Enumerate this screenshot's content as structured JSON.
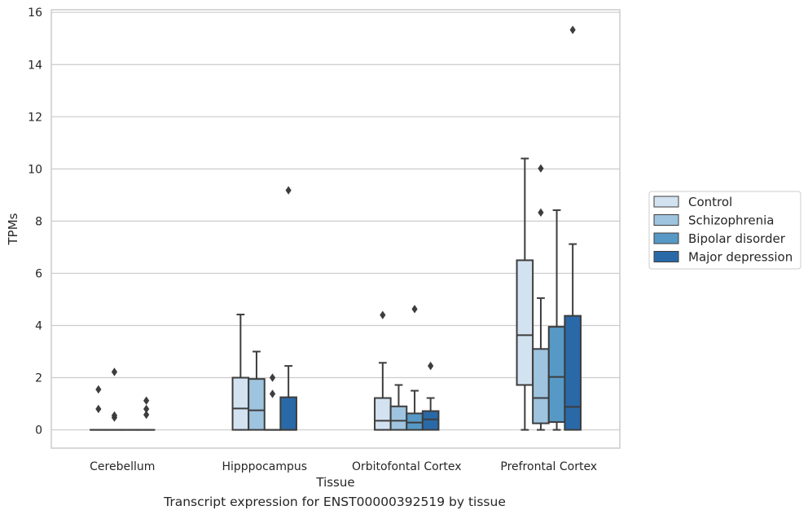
{
  "chart_data": {
    "type": "box",
    "xlabel": "Tissue",
    "ylabel": "TPMs",
    "caption": "Transcript expression for ENST00000392519 by tissue",
    "categories": [
      "Cerebellum",
      "Hipppocampus",
      "Orbitofontal Cortex",
      "Prefrontal Cortex"
    ],
    "ylim": [
      -0.7,
      16.1
    ],
    "yticks": [
      0,
      2,
      4,
      6,
      8,
      10,
      12,
      14,
      16
    ],
    "grid": true,
    "legend_position": "center-right",
    "series": [
      {
        "name": "Control",
        "color": "#d3e2f0",
        "boxes": [
          {
            "min": 0,
            "q1": 0,
            "median": 0,
            "q3": 0,
            "max": 0,
            "outliers": [
              0.8,
              1.55
            ]
          },
          {
            "min": 0,
            "q1": 0,
            "median": 0.82,
            "q3": 2.0,
            "max": 4.42,
            "outliers": []
          },
          {
            "min": 0,
            "q1": 0,
            "median": 0.35,
            "q3": 1.22,
            "max": 2.57,
            "outliers": [
              4.4
            ]
          },
          {
            "min": 0,
            "q1": 1.72,
            "median": 3.63,
            "q3": 6.5,
            "max": 10.4,
            "outliers": []
          }
        ]
      },
      {
        "name": "Schizophrenia",
        "color": "#9ec4df",
        "boxes": [
          {
            "min": 0,
            "q1": 0,
            "median": 0,
            "q3": 0,
            "max": 0,
            "outliers": [
              0.47,
              0.55,
              2.22
            ]
          },
          {
            "min": 0,
            "q1": 0,
            "median": 0.75,
            "q3": 1.95,
            "max": 3.0,
            "outliers": []
          },
          {
            "min": 0,
            "q1": 0,
            "median": 0.35,
            "q3": 0.9,
            "max": 1.72,
            "outliers": []
          },
          {
            "min": 0,
            "q1": 0.25,
            "median": 1.22,
            "q3": 3.1,
            "max": 5.05,
            "outliers": [
              8.33,
              10.02
            ]
          }
        ]
      },
      {
        "name": "Bipolar disorder",
        "color": "#5799c6",
        "boxes": [
          {
            "min": 0,
            "q1": 0,
            "median": 0,
            "q3": 0,
            "max": 0,
            "outliers": []
          },
          {
            "min": 0,
            "q1": 0,
            "median": 0,
            "q3": 0,
            "max": 0,
            "outliers": [
              1.38,
              2.0
            ]
          },
          {
            "min": 0,
            "q1": 0,
            "median": 0.28,
            "q3": 0.63,
            "max": 1.5,
            "outliers": [
              4.63
            ]
          },
          {
            "min": 0,
            "q1": 0.3,
            "median": 2.03,
            "q3": 3.95,
            "max": 8.42,
            "outliers": []
          }
        ]
      },
      {
        "name": "Major depression",
        "color": "#2a69a7",
        "boxes": [
          {
            "min": 0,
            "q1": 0,
            "median": 0,
            "q3": 0,
            "max": 0,
            "outliers": [
              0.58,
              0.8,
              1.12
            ]
          },
          {
            "min": 0,
            "q1": 0,
            "median": 0,
            "q3": 1.25,
            "max": 2.45,
            "outliers": [
              9.18
            ]
          },
          {
            "min": 0,
            "q1": 0,
            "median": 0.4,
            "q3": 0.72,
            "max": 1.22,
            "outliers": [
              2.45
            ]
          },
          {
            "min": 0,
            "q1": 0,
            "median": 0.88,
            "q3": 4.37,
            "max": 7.12,
            "outliers": [
              15.33
            ]
          }
        ]
      }
    ]
  }
}
